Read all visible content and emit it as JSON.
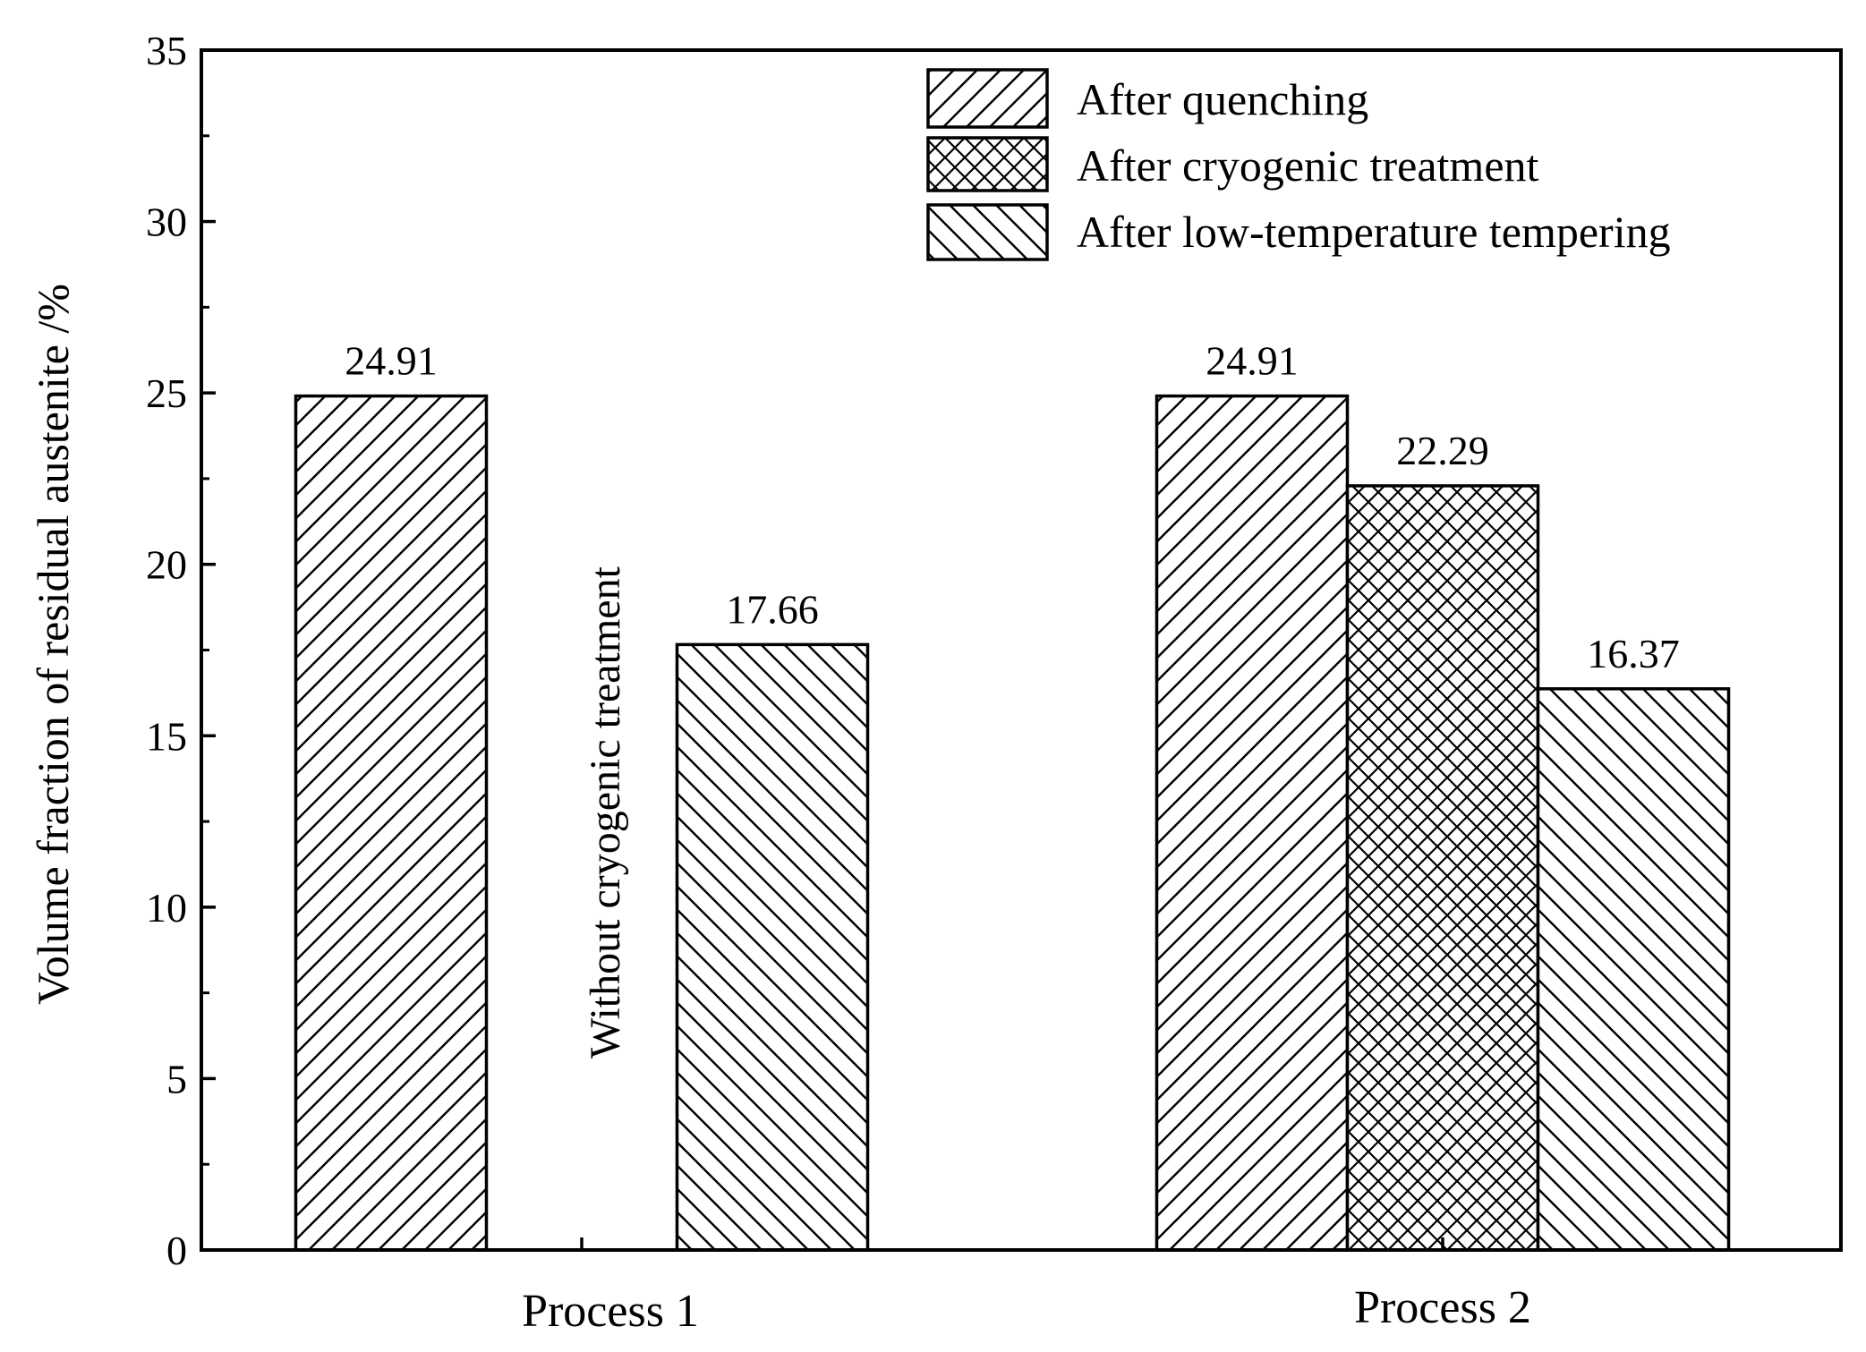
{
  "chart_data": {
    "type": "bar",
    "title": "",
    "xlabel": "",
    "ylabel": "Volume fraction of residual austenite /%",
    "ylim": [
      0,
      35
    ],
    "yticks": [
      0,
      5,
      10,
      15,
      20,
      25,
      30,
      35
    ],
    "grid": false,
    "legend_position": "top-right",
    "categories": [
      "Process 1",
      "Process 2"
    ],
    "series": [
      {
        "name": "After quenching",
        "hatch": "forward",
        "values": [
          24.91,
          24.91
        ],
        "labels": [
          "24.91",
          "24.91"
        ]
      },
      {
        "name": "After cryogenic treatment",
        "hatch": "cross",
        "values": [
          null,
          22.29
        ],
        "labels": [
          "",
          "22.29"
        ]
      },
      {
        "name": "After low-temperature tempering",
        "hatch": "back",
        "values": [
          17.66,
          16.37
        ],
        "labels": [
          "17.66",
          "16.37"
        ]
      }
    ],
    "annotations": [
      {
        "text": "Without cryogenic treatment",
        "category": "Process 1",
        "series": "After cryogenic treatment",
        "orientation": "vertical"
      }
    ]
  }
}
